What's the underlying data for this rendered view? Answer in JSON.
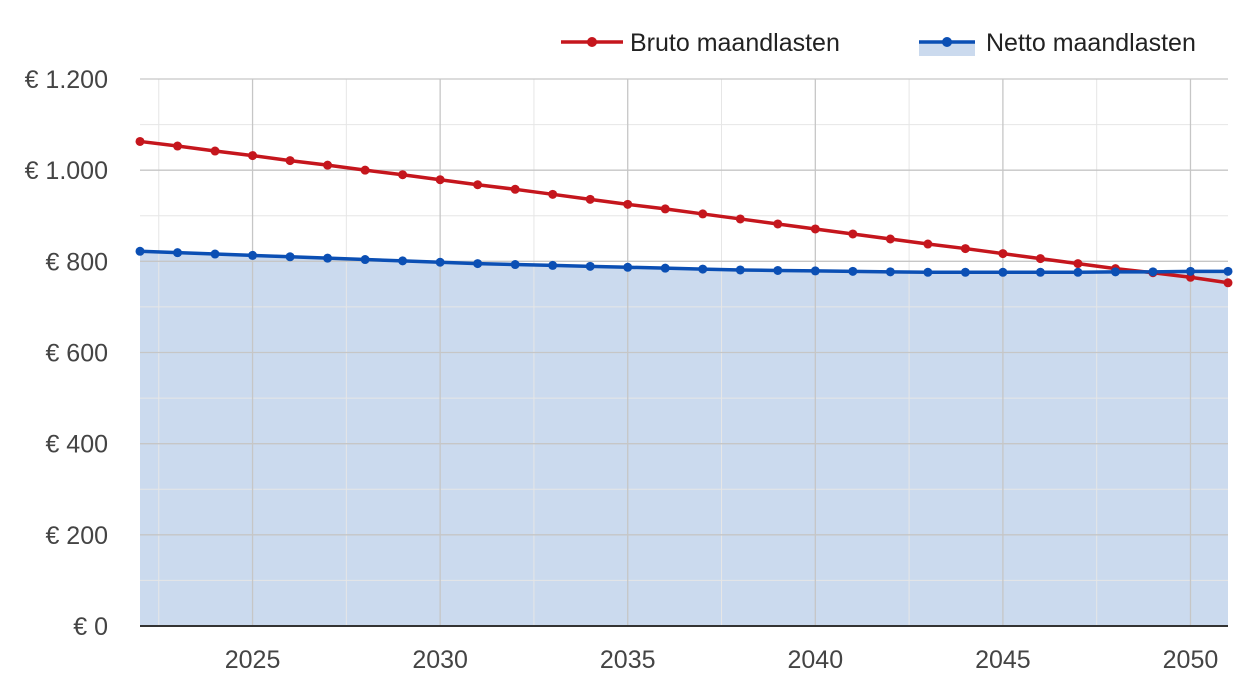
{
  "chart_data": {
    "type": "line",
    "title": "",
    "xlabel": "",
    "ylabel": "",
    "xlim": [
      2022,
      2051
    ],
    "ylim": [
      0,
      1200
    ],
    "x_ticks": [
      2025,
      2030,
      2035,
      2040,
      2045,
      2050
    ],
    "y_ticks": [
      0,
      200,
      400,
      600,
      800,
      1000,
      1200
    ],
    "y_tick_labels": [
      "€ 0",
      "€ 200",
      "€ 400",
      "€ 600",
      "€ 800",
      "€ 1.000",
      "€ 1.200"
    ],
    "grid": true,
    "legend_position": "top-right",
    "x": [
      2022,
      2023,
      2024,
      2025,
      2026,
      2027,
      2028,
      2029,
      2030,
      2031,
      2032,
      2033,
      2034,
      2035,
      2036,
      2037,
      2038,
      2039,
      2040,
      2041,
      2042,
      2043,
      2044,
      2045,
      2046,
      2047,
      2048,
      2049,
      2050,
      2051
    ],
    "series": [
      {
        "name": "Bruto maandlasten",
        "color": "#c5161d",
        "area": false,
        "values": [
          1063,
          1053,
          1042,
          1032,
          1021,
          1011,
          1000,
          990,
          979,
          968,
          958,
          947,
          936,
          925,
          915,
          904,
          893,
          882,
          871,
          860,
          849,
          838,
          828,
          817,
          806,
          795,
          784,
          775,
          765,
          753
        ]
      },
      {
        "name": "Netto maandlasten",
        "color": "#0b4fb4",
        "area": true,
        "area_color": "#cbdaee",
        "values": [
          822,
          819,
          816,
          813,
          810,
          807,
          804,
          801,
          798,
          795,
          793,
          791,
          789,
          787,
          785,
          783,
          781,
          780,
          779,
          778,
          777,
          776,
          776,
          776,
          776,
          776,
          777,
          777,
          778,
          778
        ]
      }
    ]
  }
}
